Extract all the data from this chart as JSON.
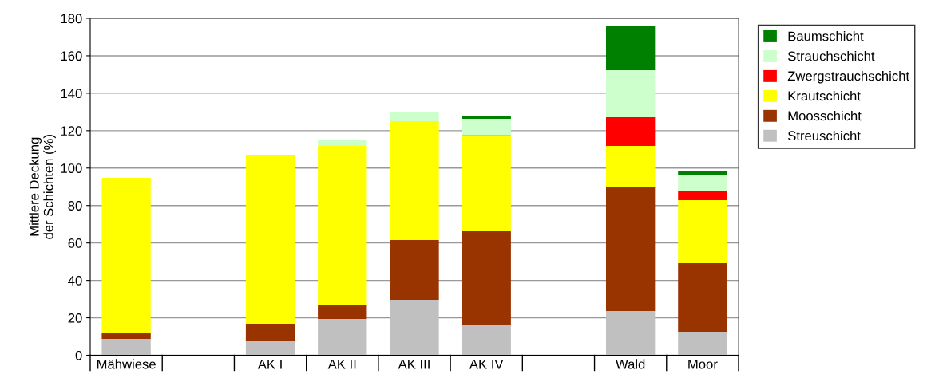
{
  "chart_data": {
    "type": "bar",
    "stacked": true,
    "ylabel": "Mittlere Deckung\nder Schichten (%)",
    "categories": [
      "Mähwiese",
      null,
      "AK I",
      "AK II",
      "AK III",
      "AK IV",
      null,
      "Wald",
      "Moor"
    ],
    "series": [
      {
        "name": "Streuschicht",
        "color": "#c0c0c0",
        "values": [
          8.7,
          null,
          7.5,
          19.4,
          29.6,
          16,
          null,
          23.6,
          12.6
        ]
      },
      {
        "name": "Moosschicht",
        "color": "#993300",
        "values": [
          3.4,
          null,
          9.3,
          7.2,
          32,
          50.3,
          null,
          66.1,
          36.6
        ]
      },
      {
        "name": "Krautschicht",
        "color": "#ffff00",
        "values": [
          82.7,
          null,
          90.4,
          85.2,
          63.4,
          50.7,
          null,
          22.1,
          33.7
        ]
      },
      {
        "name": "Zwergstrauchschicht",
        "color": "#ff0000",
        "values": [
          0,
          null,
          0,
          0,
          0,
          0.6,
          null,
          15.4,
          5.1
        ]
      },
      {
        "name": "Strauchschicht",
        "color": "#ccffcc",
        "values": [
          0,
          null,
          0,
          3,
          4.7,
          8.7,
          null,
          25.1,
          8.5
        ]
      },
      {
        "name": "Baumschicht",
        "color": "#008000",
        "values": [
          0,
          null,
          0,
          0,
          0,
          1.7,
          null,
          23.9,
          2.1
        ]
      }
    ],
    "ylim": [
      0,
      180
    ],
    "yticks": [
      0,
      20,
      40,
      60,
      80,
      100,
      120,
      140,
      160,
      180
    ],
    "grid": "y",
    "legend": "right"
  }
}
